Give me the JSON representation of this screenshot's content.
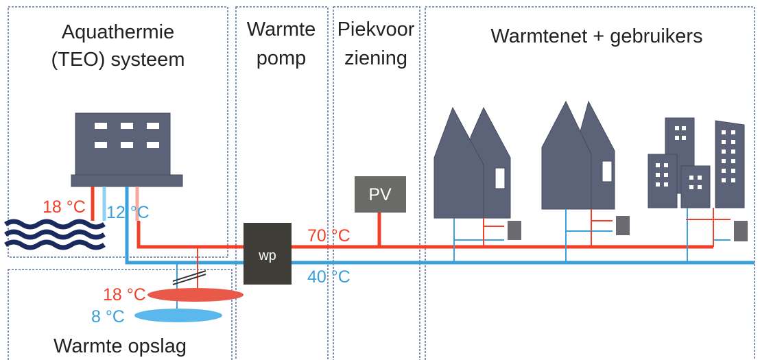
{
  "sections": [
    {
      "lines": [
        "Aquathermie",
        "(TEO) systeem"
      ]
    },
    {
      "lines": [
        "Warmte",
        "pomp"
      ]
    },
    {
      "lines": [
        "Piekvoor",
        "ziening"
      ]
    },
    {
      "lines": [
        "Warmtenet + gebruikers"
      ]
    },
    {
      "lines": [
        "Warmte opslag"
      ]
    }
  ],
  "components": {
    "heat_pump": "wp",
    "peak": "PV"
  },
  "temperatures": [
    "18 °C",
    "12 °C",
    "70 °C",
    "40 °C",
    "18 °C",
    "8 °C"
  ]
}
